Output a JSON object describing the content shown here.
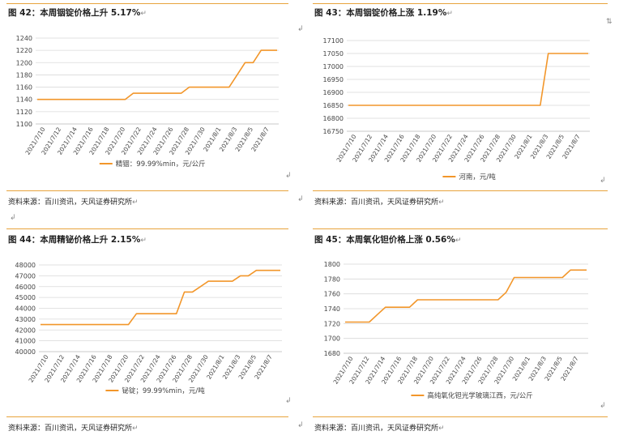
{
  "figures": [
    {
      "title": "图 42：本周铟锭价格上升 5.17%",
      "source": "资料来源：百川资讯，天风证券研究所",
      "chart_data": {
        "type": "line",
        "categories": [
          "2021/7/10",
          "2021/7/12",
          "2021/7/14",
          "2021/7/16",
          "2021/7/18",
          "2021/7/20",
          "2021/7/22",
          "2021/7/24",
          "2021/7/26",
          "2021/7/28",
          "2021/7/30",
          "2021/8/1",
          "2021/8/3",
          "2021/8/5",
          "2021/8/7"
        ],
        "x": [
          "7/9",
          "7/10",
          "7/11",
          "7/12",
          "7/13",
          "7/14",
          "7/15",
          "7/16",
          "7/17",
          "7/18",
          "7/19",
          "7/20",
          "7/21",
          "7/22",
          "7/23",
          "7/24",
          "7/25",
          "7/26",
          "7/27",
          "7/28",
          "7/29",
          "7/30",
          "7/31",
          "8/1",
          "8/2",
          "8/3",
          "8/4",
          "8/5",
          "8/6",
          "8/7",
          "8/8"
        ],
        "series": [
          {
            "name": "精铟：99.99%min，元/公斤",
            "values": [
              1140,
              1140,
              1140,
              1140,
              1140,
              1140,
              1140,
              1140,
              1140,
              1140,
              1140,
              1140,
              1150,
              1150,
              1150,
              1150,
              1150,
              1150,
              1150,
              1160,
              1160,
              1160,
              1160,
              1160,
              1160,
              1180,
              1200,
              1200,
              1220,
              1220,
              1220
            ]
          }
        ],
        "yticks": [
          "1100",
          "1120",
          "1140",
          "1160",
          "1180",
          "1200",
          "1220",
          "1240"
        ],
        "ylim": [
          1100,
          1240
        ],
        "color": "#f2962a"
      }
    },
    {
      "title": "图 43：本周铟锭价格上涨 1.19%",
      "source": "资料来源：百川资讯，天风证券研究所",
      "chart_data": {
        "type": "line",
        "categories": [
          "2021/7/10",
          "2021/7/12",
          "2021/7/14",
          "2021/7/16",
          "2021/7/18",
          "2021/7/20",
          "2021/7/22",
          "2021/7/24",
          "2021/7/26",
          "2021/7/28",
          "2021/7/30",
          "2021/8/1",
          "2021/8/3",
          "2021/8/5",
          "2021/8/7"
        ],
        "x": [
          "7/9",
          "7/10",
          "7/11",
          "7/12",
          "7/13",
          "7/14",
          "7/15",
          "7/16",
          "7/17",
          "7/18",
          "7/19",
          "7/20",
          "7/21",
          "7/22",
          "7/23",
          "7/24",
          "7/25",
          "7/26",
          "7/27",
          "7/28",
          "7/29",
          "7/30",
          "7/31",
          "8/1",
          "8/2",
          "8/3",
          "8/4",
          "8/5",
          "8/6",
          "8/7",
          "8/8"
        ],
        "series": [
          {
            "name": "河南，元/吨",
            "values": [
              16850,
              16850,
              16850,
              16850,
              16850,
              16850,
              16850,
              16850,
              16850,
              16850,
              16850,
              16850,
              16850,
              16850,
              16850,
              16850,
              16850,
              16850,
              16850,
              16850,
              16850,
              16850,
              16850,
              16850,
              16850,
              17050,
              17050,
              17050,
              17050,
              17050,
              17050
            ]
          }
        ],
        "yticks": [
          "16750",
          "16800",
          "16850",
          "16900",
          "16950",
          "17000",
          "17050",
          "17100"
        ],
        "ylim": [
          16750,
          17100
        ],
        "color": "#f2962a"
      }
    },
    {
      "title": "图 44：本周精铋价格上升 2.15%",
      "source": "资料来源：百川资讯，天风证券研究所",
      "chart_data": {
        "type": "line",
        "categories": [
          "2021/7/10",
          "2021/7/12",
          "2021/7/14",
          "2021/7/16",
          "2021/7/18",
          "2021/7/20",
          "2021/7/22",
          "2021/7/24",
          "2021/7/26",
          "2021/7/28",
          "2021/7/30",
          "2021/8/1",
          "2021/8/3",
          "2021/8/5",
          "2021/8/7"
        ],
        "x": [
          "7/9",
          "7/10",
          "7/11",
          "7/12",
          "7/13",
          "7/14",
          "7/15",
          "7/16",
          "7/17",
          "7/18",
          "7/19",
          "7/20",
          "7/21",
          "7/22",
          "7/23",
          "7/24",
          "7/25",
          "7/26",
          "7/27",
          "7/28",
          "7/29",
          "7/30",
          "7/31",
          "8/1",
          "8/2",
          "8/3",
          "8/4",
          "8/5",
          "8/6",
          "8/7",
          "8/8"
        ],
        "series": [
          {
            "name": "铋锭；99.99%min，元/吨",
            "values": [
              42500,
              42500,
              42500,
              42500,
              42500,
              42500,
              42500,
              42500,
              42500,
              42500,
              42500,
              42500,
              43500,
              43500,
              43500,
              43500,
              43500,
              43500,
              45500,
              45500,
              46000,
              46500,
              46500,
              46500,
              46500,
              47000,
              47000,
              47500,
              47500,
              47500,
              47500
            ]
          }
        ],
        "yticks": [
          "40000",
          "41000",
          "42000",
          "43000",
          "44000",
          "45000",
          "46000",
          "47000",
          "48000"
        ],
        "ylim": [
          40000,
          48000
        ],
        "color": "#f2962a"
      }
    },
    {
      "title": "图 45：本周氧化钽价格上涨 0.56%",
      "source": "资料来源：百川资讯，天风证券研究所",
      "chart_data": {
        "type": "line",
        "categories": [
          "2021/7/10",
          "2021/7/12",
          "2021/7/14",
          "2021/7/16",
          "2021/7/18",
          "2021/7/20",
          "2021/7/22",
          "2021/7/24",
          "2021/7/26",
          "2021/7/28",
          "2021/7/30",
          "2021/8/1",
          "2021/8/3",
          "2021/8/5",
          "2021/8/7"
        ],
        "x": [
          "7/9",
          "7/10",
          "7/11",
          "7/12",
          "7/13",
          "7/14",
          "7/15",
          "7/16",
          "7/17",
          "7/18",
          "7/19",
          "7/20",
          "7/21",
          "7/22",
          "7/23",
          "7/24",
          "7/25",
          "7/26",
          "7/27",
          "7/28",
          "7/29",
          "7/30",
          "7/31",
          "8/1",
          "8/2",
          "8/3",
          "8/4",
          "8/5",
          "8/6",
          "8/7",
          "8/8"
        ],
        "series": [
          {
            "name": "高纯氧化钽光学玻璃江西，元/公斤",
            "values": [
              1722,
              1722,
              1722,
              1722,
              1732,
              1742,
              1742,
              1742,
              1742,
              1752,
              1752,
              1752,
              1752,
              1752,
              1752,
              1752,
              1752,
              1752,
              1752,
              1752,
              1762,
              1782,
              1782,
              1782,
              1782,
              1782,
              1782,
              1782,
              1792,
              1792,
              1792
            ]
          }
        ],
        "yticks": [
          "1680",
          "1700",
          "1720",
          "1740",
          "1760",
          "1780",
          "1800"
        ],
        "ylim": [
          1680,
          1800
        ],
        "color": "#f2962a"
      }
    }
  ],
  "marks": {
    "return": "↵",
    "newline": "↲",
    "crossref": "⇅"
  }
}
